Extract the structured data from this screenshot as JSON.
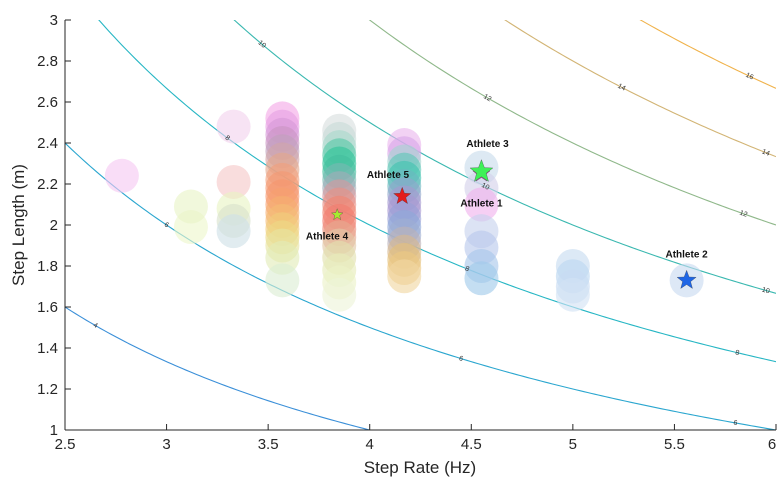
{
  "chart_data": {
    "type": "scatter",
    "xlabel": "Step Rate (Hz)",
    "ylabel": "Step Length (m)",
    "xlim": [
      2.5,
      6
    ],
    "ylim": [
      1,
      3
    ],
    "xticks": [
      "2.5",
      "3",
      "3.5",
      "4",
      "4.5",
      "5",
      "5.5",
      "6"
    ],
    "yticks": [
      "1",
      "1.2",
      "1.4",
      "1.6",
      "1.8",
      "2",
      "2.2",
      "2.4",
      "2.6",
      "2.8",
      "3"
    ],
    "grid": false,
    "contours": [
      {
        "level": 4,
        "label": "4",
        "color": "#3a8fd8"
      },
      {
        "level": 6,
        "label": "6",
        "color": "#2aa6cf"
      },
      {
        "level": 8,
        "label": "8",
        "color": "#26b6c4"
      },
      {
        "level": 10,
        "label": "10",
        "color": "#3ab8b0"
      },
      {
        "level": 12,
        "label": "12",
        "color": "#8fb88a"
      },
      {
        "level": 14,
        "label": "14",
        "color": "#d2b474"
      },
      {
        "level": 16,
        "label": "16",
        "color": "#f0b24a"
      }
    ],
    "contour_label_points": [
      {
        "level": 4,
        "x": 2.65
      },
      {
        "level": 6,
        "x": 3.0
      },
      {
        "level": 6,
        "x": 4.45
      },
      {
        "level": 6,
        "x": 5.8
      },
      {
        "level": 8,
        "x": 3.3
      },
      {
        "level": 8,
        "x": 4.48
      },
      {
        "level": 8,
        "x": 5.81
      },
      {
        "level": 10,
        "x": 3.47
      },
      {
        "level": 10,
        "x": 4.57
      },
      {
        "level": 10,
        "x": 5.95
      },
      {
        "level": 12,
        "x": 4.58
      },
      {
        "level": 12,
        "x": 5.84
      },
      {
        "level": 14,
        "x": 5.24
      },
      {
        "level": 14,
        "x": 5.95
      },
      {
        "level": 16,
        "x": 5.87
      }
    ],
    "bubble_columns": [
      {
        "x": 2.78,
        "y": [
          2.24
        ],
        "colors": [
          "#f6c8f2"
        ]
      },
      {
        "x": 3.12,
        "y": [
          1.99,
          2.09
        ],
        "colors": [
          "#eef7cc",
          "#e8f4c6"
        ]
      },
      {
        "x": 3.33,
        "y": [
          2.48,
          2.21,
          2.08,
          2.02,
          1.97
        ],
        "colors": [
          "#f2d2ee",
          "#f6c8c8",
          "#e9f4c4",
          "#d8e2cc",
          "#cfe0e6"
        ]
      },
      {
        "x": 3.57,
        "y": [
          2.52,
          2.48,
          2.44,
          2.4,
          2.36,
          2.32,
          2.27,
          2.22,
          2.18,
          2.14,
          2.1,
          2.06,
          2.02,
          1.98,
          1.94,
          1.9,
          1.84,
          1.73
        ],
        "colors": [
          "#f4a8e6",
          "#e7a2e4",
          "#d79ad8",
          "#c994c4",
          "#c0a0bc",
          "#d0a4a8",
          "#e4a88c",
          "#f0a07c",
          "#f49a72",
          "#f6966e",
          "#f7a070",
          "#f6ae70",
          "#f4bc74",
          "#f0cc7a",
          "#ecd884",
          "#e6e4a0",
          "#e2ecb8",
          "#dcedd4"
        ]
      },
      {
        "x": 3.85,
        "y": [
          2.46,
          2.42,
          2.38,
          2.34,
          2.3,
          2.26,
          2.22,
          2.18,
          2.14,
          2.1,
          2.06,
          2.02,
          1.98,
          1.94,
          1.9,
          1.84,
          1.78,
          1.72,
          1.66
        ],
        "colors": [
          "#d8dede",
          "#c8dcd8",
          "#a8d8cc",
          "#58c8a8",
          "#30c49a",
          "#44be9e",
          "#78b8b2",
          "#a0acb8",
          "#d49aa0",
          "#e89286",
          "#f08672",
          "#f27c6e",
          "#ee8c7a",
          "#e6aa90",
          "#e2c8a6",
          "#e2e0ae",
          "#e6ecba",
          "#ecf2c8",
          "#eef4d8"
        ]
      },
      {
        "x": 4.17,
        "y": [
          2.39,
          2.35,
          2.31,
          2.27,
          2.23,
          2.19,
          2.15,
          2.11,
          2.07,
          2.03,
          1.99,
          1.95,
          1.91,
          1.87,
          1.83,
          1.79,
          1.75
        ],
        "colors": [
          "#eab6ee",
          "#d8a6e8",
          "#a4d4d0",
          "#60c8b8",
          "#40c4b0",
          "#6cb8c0",
          "#90a6cc",
          "#a49ad0",
          "#a898d2",
          "#9aa0d6",
          "#8ea8d8",
          "#9eaed2",
          "#bcb2b8",
          "#d6b890",
          "#e4c07a",
          "#ecc882",
          "#f0d6a2"
        ]
      },
      {
        "x": 4.55,
        "y": [
          2.28,
          2.18,
          2.1,
          1.97,
          1.89,
          1.8,
          1.74
        ],
        "colors": [
          "#c8dcec",
          "#d4d0ea",
          "#f0b2ee",
          "#c6d2ee",
          "#b8c8ec",
          "#a8c6ea",
          "#9fcaea"
        ]
      },
      {
        "x": 5.0,
        "y": [
          1.8,
          1.75,
          1.7,
          1.66
        ],
        "colors": [
          "#c6dcf0",
          "#bcd6f0",
          "#c8dcf2",
          "#d2e2f4"
        ]
      },
      {
        "x": 5.56,
        "y": [
          1.73
        ],
        "colors": [
          "#c8daf0"
        ]
      }
    ],
    "athletes": [
      {
        "name": "Athlete 1",
        "x": 4.55,
        "y": 2.25,
        "color": "#e23cc8",
        "star_size": 9,
        "label_x": 4.55,
        "label_y": 2.11
      },
      {
        "name": "Athlete 2",
        "x": 5.56,
        "y": 1.73,
        "color": "#1f66e6",
        "star_size": 10,
        "label_x": 5.56,
        "label_y": 1.86
      },
      {
        "name": "Athlete 3",
        "x": 4.55,
        "y": 2.26,
        "color": "#3ff058",
        "star_size": 12,
        "label_x": 4.58,
        "label_y": 2.4
      },
      {
        "name": "Athlete 4",
        "x": 3.84,
        "y": 2.05,
        "color": "#a6ec30",
        "star_size": 6,
        "label_x": 3.79,
        "label_y": 1.95
      },
      {
        "name": "Athlete 5",
        "x": 4.16,
        "y": 2.14,
        "color": "#e41b1b",
        "star_size": 9,
        "label_x": 4.09,
        "label_y": 2.25
      }
    ]
  }
}
